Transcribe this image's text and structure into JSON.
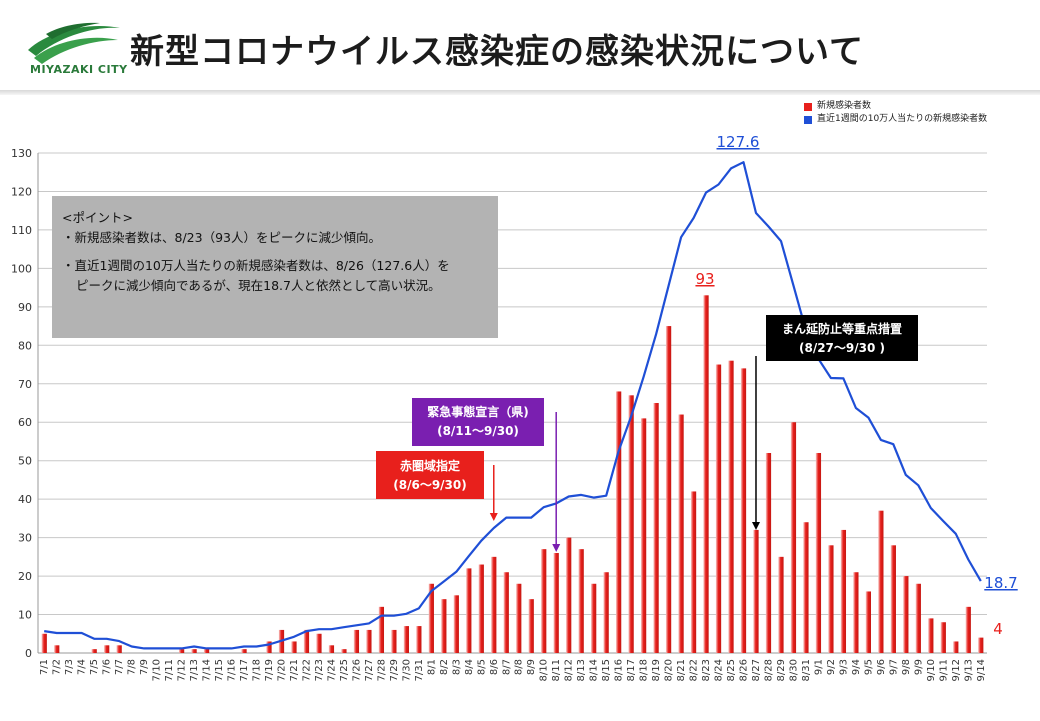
{
  "header": {
    "title": "新型コロナウイルス感染症の感染状況について",
    "logo_text": "MIYAZAKI CITY"
  },
  "points": {
    "heading": "<ポイント>",
    "line1": "・新規感染者数は、8/23（93人）をピークに減少傾向。",
    "line2": "・直近1週間の10万人当たりの新規感染者数は、8/26（127.6人）を",
    "line3": "ピークに減少傾向であるが、現在18.7人と依然として高い状況。"
  },
  "callouts": {
    "red": {
      "line1": "赤圏域指定",
      "line2": "(8/6～9/30)"
    },
    "purple": {
      "line1": "緊急事態宣言（県)",
      "line2": "(8/11～9/30)"
    },
    "black": {
      "line1": "まん延防止等重点措置",
      "line2": "(8/27～9/30 )"
    }
  },
  "colors": {
    "bar": "#e8201c",
    "line": "#1f4fd6",
    "red_callout": "#e8201c",
    "purple_callout": "#7a1fb0",
    "black_callout": "#000000"
  },
  "chart_data": {
    "type": "bar+line",
    "ylim": [
      0,
      130
    ],
    "yticks": [
      0,
      10,
      20,
      30,
      40,
      50,
      60,
      70,
      80,
      90,
      100,
      110,
      120,
      130
    ],
    "categories": [
      "7/1",
      "7/2",
      "7/3",
      "7/4",
      "7/5",
      "7/6",
      "7/7",
      "7/8",
      "7/9",
      "7/10",
      "7/11",
      "7/12",
      "7/13",
      "7/14",
      "7/15",
      "7/16",
      "7/17",
      "7/18",
      "7/19",
      "7/20",
      "7/21",
      "7/22",
      "7/23",
      "7/24",
      "7/25",
      "7/26",
      "7/27",
      "7/28",
      "7/29",
      "7/30",
      "7/31",
      "8/1",
      "8/2",
      "8/3",
      "8/4",
      "8/5",
      "8/6",
      "8/7",
      "8/8",
      "8/9",
      "8/10",
      "8/11",
      "8/12",
      "8/13",
      "8/14",
      "8/15",
      "8/16",
      "8/17",
      "8/18",
      "8/19",
      "8/20",
      "8/21",
      "8/22",
      "8/23",
      "8/24",
      "8/25",
      "8/26",
      "8/27",
      "8/28",
      "8/29",
      "8/30",
      "8/31",
      "9/1",
      "9/2",
      "9/3",
      "9/4",
      "9/5",
      "9/6",
      "9/7",
      "9/8",
      "9/9",
      "9/10",
      "9/11",
      "9/12",
      "9/13",
      "9/14"
    ],
    "series": [
      {
        "name": "新規感染者数",
        "kind": "bar",
        "values": [
          5,
          2,
          0,
          0,
          1,
          2,
          2,
          0,
          0,
          0,
          0,
          1,
          1,
          1,
          0,
          0,
          1,
          0,
          3,
          6,
          3,
          6,
          5,
          2,
          1,
          6,
          6,
          12,
          6,
          7,
          7,
          18,
          14,
          15,
          22,
          23,
          25,
          21,
          18,
          14,
          27,
          26,
          30,
          27,
          18,
          21,
          68,
          67,
          61,
          65,
          85,
          62,
          42,
          93,
          75,
          76,
          74,
          32,
          52,
          25,
          60,
          34,
          52,
          28,
          32,
          21,
          16,
          37,
          28,
          20,
          18,
          9,
          8,
          3,
          12,
          4
        ]
      },
      {
        "name": "直近1週間の10万人当たりの新規感染者数",
        "kind": "line",
        "values": [
          5.7,
          5.2,
          5.2,
          5.2,
          3.7,
          3.7,
          3.1,
          1.7,
          1.2,
          1.2,
          1.2,
          1.2,
          1.7,
          1.2,
          1.2,
          1.2,
          1.7,
          1.7,
          2.2,
          3.2,
          4.2,
          5.7,
          6.2,
          6.2,
          6.7,
          7.2,
          7.7,
          9.7,
          9.7,
          10.2,
          11.6,
          16.1,
          18.6,
          21.1,
          25.2,
          29.2,
          32.5,
          35.2,
          35.2,
          35.2,
          37.9,
          38.9,
          40.7,
          41.1,
          40.4,
          40.9,
          52.5,
          61.5,
          71.8,
          82.9,
          95.5,
          108.1,
          113.1,
          119.7,
          121.8,
          126.0,
          127.6,
          114.4,
          110.9,
          107.1,
          95.5,
          83.9,
          76.5,
          71.5,
          71.4,
          63.7,
          61.2,
          55.4,
          54.3,
          46.3,
          43.6,
          37.7,
          34.3,
          31.0,
          24.3,
          18.7
        ]
      }
    ],
    "annotations": {
      "bar_peak": "93",
      "line_peak": "127.6",
      "line_last": "18.7",
      "bar_last": "4"
    },
    "legend": [
      "新規感染者数",
      "直近1週間の10万人当たりの新規感染者数"
    ]
  }
}
